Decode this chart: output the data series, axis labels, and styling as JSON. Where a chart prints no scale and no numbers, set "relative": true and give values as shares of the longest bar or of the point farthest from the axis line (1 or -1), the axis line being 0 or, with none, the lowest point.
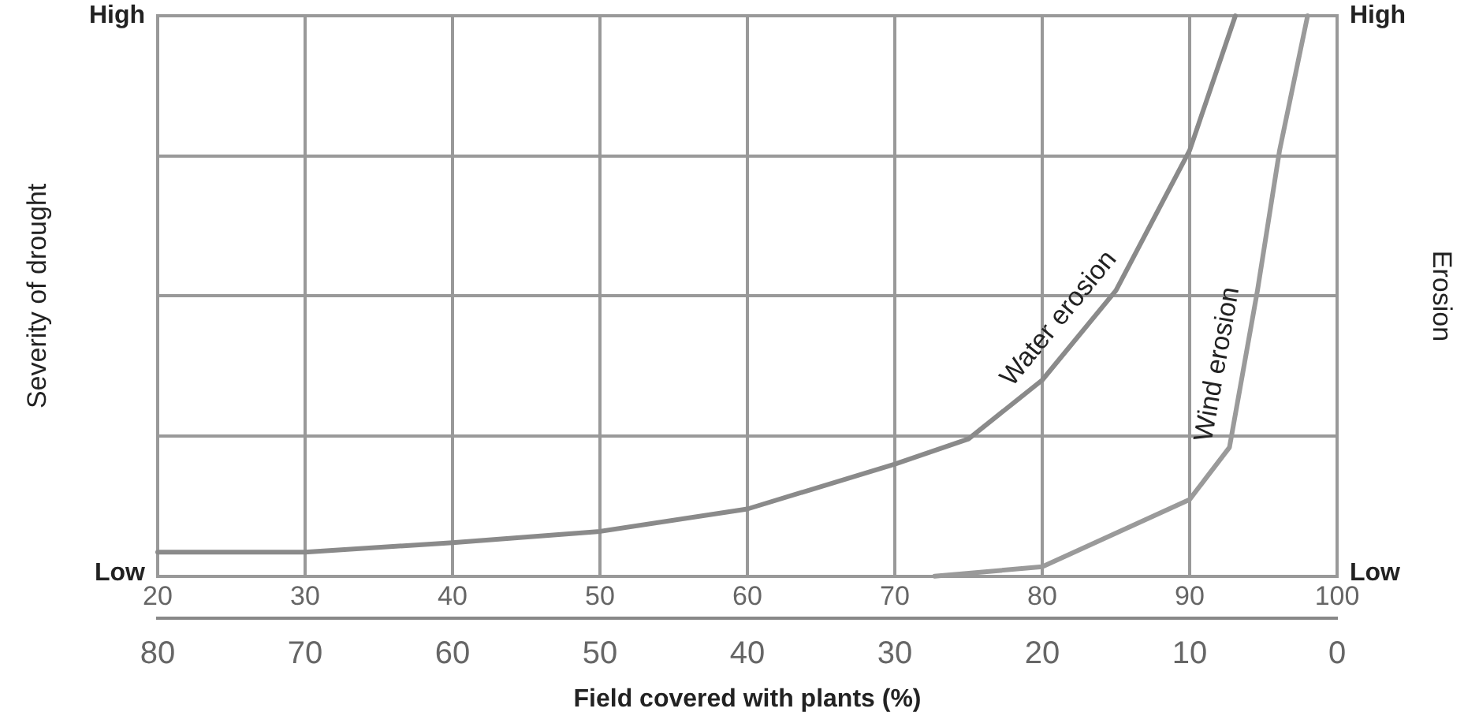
{
  "chart_data": {
    "type": "line",
    "xlabel": "Field covered with plants (%)",
    "ylabel": "Severity of drought",
    "y2label": "Erosion",
    "xlim": [
      20,
      100
    ],
    "xticks": [
      20,
      30,
      40,
      50,
      60,
      70,
      80,
      90,
      100
    ],
    "x2lim": [
      80,
      0
    ],
    "x2ticks": [
      80,
      70,
      60,
      50,
      40,
      30,
      20,
      10,
      0
    ],
    "relative": true,
    "annotations": [
      "High",
      "Low",
      "High",
      "Low"
    ],
    "series": [
      {
        "name": "Water erosion",
        "color": "#8a8a8a",
        "x": [
          20,
          30,
          40,
          50,
          60,
          70,
          75,
          80,
          85,
          90,
          93.1
        ],
        "values": [
          0.043,
          0.043,
          0.06,
          0.08,
          0.12,
          0.2,
          0.245,
          0.35,
          0.51,
          0.76,
          1
        ]
      },
      {
        "name": "Wind erosion",
        "color": "#9a9a9a",
        "x": [
          72.7,
          80,
          90,
          92.7,
          94.6,
          96.1,
          98
        ],
        "values": [
          0,
          0.017,
          0.137,
          0.23,
          0.51,
          0.76,
          1
        ]
      }
    ],
    "grid": true,
    "legend": false,
    "marker": "none",
    "line_style": "solid"
  }
}
